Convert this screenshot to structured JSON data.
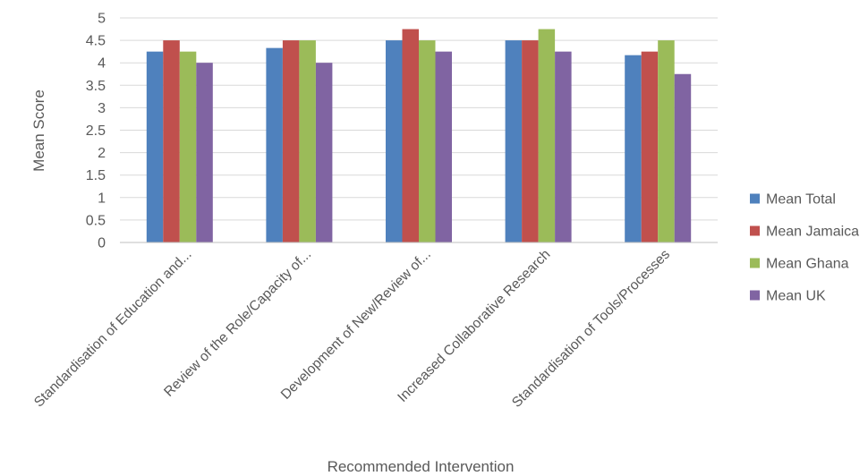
{
  "chart_data": {
    "type": "bar",
    "title": "",
    "xlabel": "Recommended Intervention",
    "ylabel": "Mean Score",
    "ylim": [
      0,
      5
    ],
    "yticks": [
      0,
      0.5,
      1,
      1.5,
      2,
      2.5,
      3,
      3.5,
      4,
      4.5,
      5
    ],
    "ytick_labels": [
      "0",
      "0.5",
      "1",
      "1.5",
      "2",
      "2.5",
      "3",
      "3.5",
      "4",
      "4.5",
      "5"
    ],
    "grid": true,
    "legend_position": "right",
    "categories": [
      "Standardisation of Education and...",
      "Review of the Role/Capacity of...",
      "Development of New/Review of...",
      "Increased Collaborative Research",
      "Standardisation of Tools/Processes"
    ],
    "series": [
      {
        "name": "Mean Total",
        "color": "#4f81bd",
        "values": [
          4.25,
          4.33,
          4.5,
          4.5,
          4.17
        ]
      },
      {
        "name": "Mean Jamaica",
        "color": "#c0504d",
        "values": [
          4.5,
          4.5,
          4.75,
          4.5,
          4.25
        ]
      },
      {
        "name": "Mean Ghana",
        "color": "#9bbb59",
        "values": [
          4.25,
          4.5,
          4.5,
          4.75,
          4.5
        ]
      },
      {
        "name": "Mean UK",
        "color": "#8064a2",
        "values": [
          4.0,
          4.0,
          4.25,
          4.25,
          3.75
        ]
      }
    ]
  }
}
